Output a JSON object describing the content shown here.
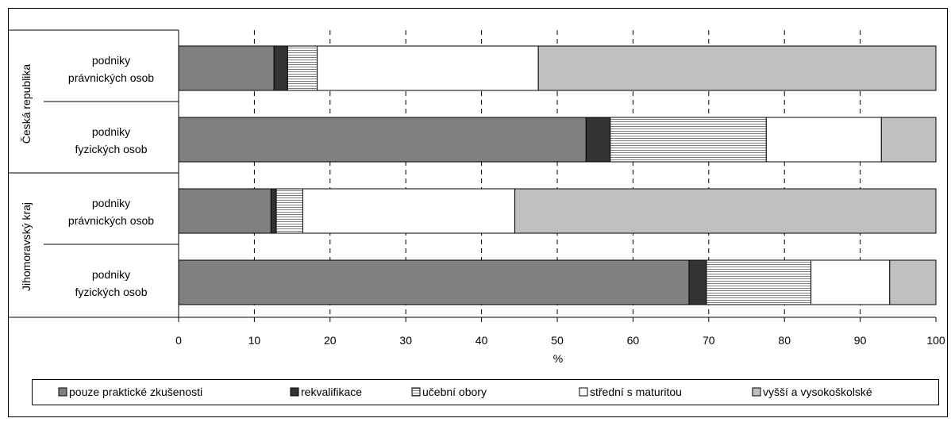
{
  "chart_data": {
    "type": "bar",
    "orientation": "horizontal",
    "stacked": "percent",
    "xlabel": "%",
    "xlim": [
      0,
      100
    ],
    "x_ticks": [
      "0",
      "10",
      "20",
      "30",
      "40",
      "50",
      "60",
      "70",
      "80",
      "90",
      "100"
    ],
    "grid": "vertical dashed",
    "legend_position": "bottom",
    "groups": [
      {
        "label": "Česká republika",
        "rows": [
          0,
          1
        ]
      },
      {
        "label": "Jihomoravský kraj",
        "rows": [
          2,
          3
        ]
      }
    ],
    "categories": [
      [
        "podniky",
        "právnických osob"
      ],
      [
        "podniky",
        "fyzických osob"
      ],
      [
        "podniky",
        "právnických osob"
      ],
      [
        "podniky",
        "fyzických osob"
      ]
    ],
    "series": [
      {
        "name": "pouze praktické zkušenosti",
        "color": "#808080",
        "pattern": "solid",
        "values": [
          12.6,
          53.8,
          12.2,
          67.4
        ]
      },
      {
        "name": "rekvalifikace",
        "color": "#333333",
        "pattern": "solid",
        "values": [
          1.8,
          3.2,
          0.7,
          2.3
        ]
      },
      {
        "name": "učební obory",
        "color": "#ffffff",
        "pattern": "horizontal-lines",
        "values": [
          3.9,
          20.6,
          3.5,
          13.8
        ]
      },
      {
        "name": "střední s maturitou",
        "color": "#ffffff",
        "pattern": "solid",
        "values": [
          29.2,
          15.2,
          28.0,
          10.4
        ]
      },
      {
        "name": "vyšší a vysokoškolské",
        "color": "#c0c0c0",
        "pattern": "solid",
        "values": [
          52.5,
          7.2,
          55.6,
          6.1
        ]
      }
    ]
  }
}
